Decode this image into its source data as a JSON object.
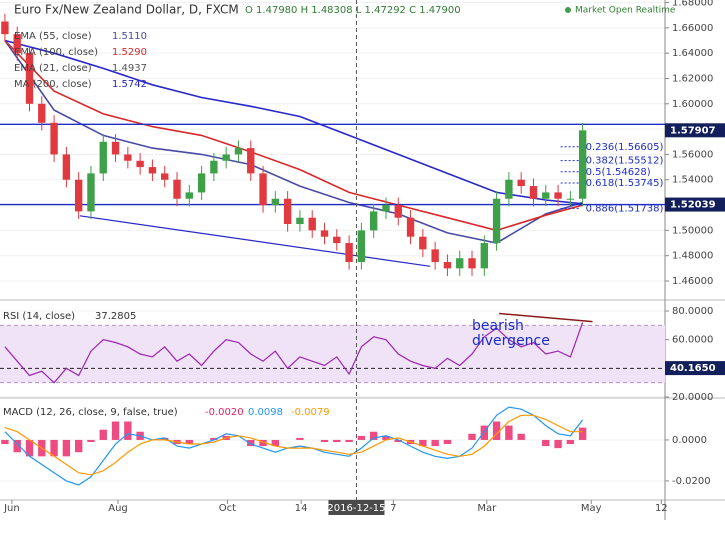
{
  "header": {
    "title": "Euro Fx/New Zealand Dollar, D, FXCM",
    "ohlc": "O 1.47980 H 1.48308 L 1.47292 C 1.47900",
    "status": "Market Open Realtime"
  },
  "crosshair": {
    "x": 28.6,
    "label": "2016-12-15"
  },
  "chart_data": [
    {
      "type": "candlestick",
      "x": [
        0,
        1,
        2,
        3,
        4,
        5,
        6,
        7,
        8,
        9,
        10,
        11,
        12,
        13,
        14,
        15,
        16,
        17,
        18,
        19,
        20,
        21,
        22,
        23,
        24,
        25,
        26,
        27,
        28,
        29,
        30,
        31,
        32,
        33,
        34,
        35,
        36,
        37,
        38,
        39,
        40,
        41,
        42,
        43,
        44,
        45,
        46,
        47
      ],
      "open": [
        1.665,
        1.655,
        1.64,
        1.6,
        1.585,
        1.56,
        1.54,
        1.515,
        1.545,
        1.57,
        1.56,
        1.555,
        1.55,
        1.545,
        1.54,
        1.525,
        1.53,
        1.545,
        1.555,
        1.56,
        1.565,
        1.545,
        1.52,
        1.525,
        1.505,
        1.51,
        1.5,
        1.495,
        1.49,
        1.475,
        1.5,
        1.515,
        1.52,
        1.51,
        1.495,
        1.485,
        1.475,
        1.47,
        1.478,
        1.47,
        1.49,
        1.525,
        1.54,
        1.535,
        1.525,
        1.53,
        1.525,
        1.525
      ],
      "high": [
        1.671,
        1.661,
        1.646,
        1.606,
        1.591,
        1.566,
        1.546,
        1.551,
        1.576,
        1.576,
        1.566,
        1.561,
        1.556,
        1.551,
        1.546,
        1.536,
        1.551,
        1.561,
        1.566,
        1.571,
        1.571,
        1.551,
        1.531,
        1.531,
        1.516,
        1.516,
        1.506,
        1.501,
        1.496,
        1.506,
        1.521,
        1.526,
        1.526,
        1.516,
        1.501,
        1.491,
        1.481,
        1.484,
        1.484,
        1.496,
        1.531,
        1.546,
        1.546,
        1.541,
        1.536,
        1.536,
        1.531,
        1.585
      ],
      "low": [
        1.649,
        1.634,
        1.594,
        1.579,
        1.554,
        1.534,
        1.509,
        1.509,
        1.539,
        1.554,
        1.549,
        1.544,
        1.539,
        1.534,
        1.519,
        1.519,
        1.524,
        1.539,
        1.549,
        1.554,
        1.539,
        1.514,
        1.514,
        1.499,
        1.499,
        1.494,
        1.489,
        1.484,
        1.469,
        1.469,
        1.494,
        1.509,
        1.504,
        1.489,
        1.479,
        1.469,
        1.464,
        1.464,
        1.464,
        1.464,
        1.484,
        1.519,
        1.529,
        1.519,
        1.519,
        1.519,
        1.519,
        1.519
      ],
      "close": [
        1.655,
        1.64,
        1.6,
        1.585,
        1.56,
        1.54,
        1.515,
        1.545,
        1.57,
        1.56,
        1.555,
        1.55,
        1.545,
        1.54,
        1.525,
        1.53,
        1.545,
        1.555,
        1.56,
        1.565,
        1.545,
        1.52,
        1.525,
        1.505,
        1.51,
        1.5,
        1.495,
        1.49,
        1.475,
        1.5,
        1.515,
        1.52,
        1.51,
        1.495,
        1.485,
        1.475,
        1.47,
        1.478,
        1.47,
        1.49,
        1.525,
        1.54,
        1.535,
        1.525,
        1.53,
        1.525,
        1.525,
        1.579
      ],
      "up_color": "#3ea14a",
      "down_color": "#e0393f",
      "series": [
        {
          "name": "EMA (55, close)",
          "legend_value": "1.5110",
          "color": "#4a4aa6",
          "x": [
            0,
            4,
            8,
            12,
            16,
            20,
            24,
            28,
            32,
            36,
            40,
            44,
            47
          ],
          "values": [
            1.65,
            1.595,
            1.575,
            1.565,
            1.56,
            1.552,
            1.535,
            1.522,
            1.513,
            1.498,
            1.49,
            1.513,
            1.522
          ]
        },
        {
          "name": "EMA (100, close)",
          "legend_value": "1.5290",
          "color": "#d8282a",
          "x": [
            0,
            4,
            8,
            12,
            16,
            20,
            24,
            28,
            32,
            36,
            40,
            44,
            47
          ],
          "values": [
            1.65,
            1.61,
            1.592,
            1.582,
            1.575,
            1.562,
            1.548,
            1.53,
            1.52,
            1.51,
            1.5,
            1.512,
            1.52
          ]
        },
        {
          "name": "EMA (21, close)",
          "legend_value": "1.4937",
          "color": "#555555",
          "x": [],
          "values": []
        },
        {
          "name": "MA (200, close)",
          "legend_value": "1.5742",
          "color": "#2828c8",
          "x": [
            0,
            4,
            8,
            12,
            16,
            20,
            24,
            28,
            32,
            36,
            40,
            44,
            47
          ],
          "values": [
            1.65,
            1.64,
            1.628,
            1.615,
            1.605,
            1.598,
            1.59,
            1.575,
            1.56,
            1.545,
            1.53,
            1.524,
            1.521
          ]
        }
      ],
      "hlines": [
        {
          "value": 1.5838
        },
        {
          "value": 1.52039,
          "label": "1.52039"
        }
      ],
      "last_price": {
        "value": 1.57907,
        "label": "1.57907"
      },
      "trendline": {
        "x": [
          6.1,
          34.6
        ],
        "y": [
          1.5115,
          1.4716
        ]
      },
      "fib": [
        {
          "value": 1.56605,
          "label": "0.236(1.56605)"
        },
        {
          "value": 1.55512,
          "label": "0.382(1.55512)"
        },
        {
          "value": 1.54628,
          "label": "0.5(1.54628)"
        },
        {
          "value": 1.53745,
          "label": "0.618(1.53745)"
        },
        {
          "value": 1.51738,
          "label": "0.886(1.51738)"
        }
      ],
      "ylim": [
        1.445,
        1.682
      ],
      "yticks": [
        {
          "value": 1.68,
          "label": "1.68000"
        },
        {
          "value": 1.66,
          "label": "1.66000"
        },
        {
          "value": 1.64,
          "label": "1.64000"
        },
        {
          "value": 1.62,
          "label": "1.62000"
        },
        {
          "value": 1.6,
          "label": "1.60000"
        },
        {
          "value": 1.58,
          "label": "1.58000"
        },
        {
          "value": 1.56,
          "label": "1.56000"
        },
        {
          "value": 1.54,
          "label": "1.54000"
        },
        {
          "value": 1.52,
          "label": "1.52000"
        },
        {
          "value": 1.5,
          "label": "1.50000"
        },
        {
          "value": 1.48,
          "label": "1.48000"
        },
        {
          "value": 1.46,
          "label": "1.46000"
        }
      ]
    },
    {
      "type": "line",
      "title": "RSI (14, close)",
      "title_value": "37.2805",
      "x": [
        0,
        1,
        2,
        3,
        4,
        5,
        6,
        7,
        8,
        9,
        10,
        11,
        12,
        13,
        14,
        15,
        16,
        17,
        18,
        19,
        20,
        21,
        22,
        23,
        24,
        25,
        26,
        27,
        28,
        29,
        30,
        31,
        32,
        33,
        34,
        35,
        36,
        37,
        38,
        39,
        40,
        41,
        42,
        43,
        44,
        45,
        46,
        47
      ],
      "series": [
        {
          "name": "RSI",
          "color": "#9c27b0",
          "values": [
            55,
            45,
            35,
            38,
            30,
            40,
            35,
            52,
            60,
            58,
            55,
            50,
            48,
            55,
            45,
            50,
            42,
            52,
            60,
            58,
            50,
            45,
            52,
            40,
            48,
            45,
            42,
            48,
            36,
            55,
            62,
            60,
            50,
            45,
            42,
            40,
            47,
            42,
            50,
            62,
            68,
            60,
            55,
            58,
            50,
            52,
            48,
            72
          ]
        }
      ],
      "band": [
        30,
        70
      ],
      "level": 40,
      "value_tag": {
        "value": 40.165,
        "label": "40.1650"
      },
      "divergence_line": {
        "x": [
          40.2,
          47.8
        ],
        "y": [
          78.3,
          72.6
        ]
      },
      "annotation": [
        "bearish",
        "divergence"
      ],
      "ylim": [
        19.3,
        86.3
      ],
      "yticks": [
        {
          "value": 80,
          "label": "80.0000"
        },
        {
          "value": 60,
          "label": "60.0000"
        },
        {
          "value": 20,
          "label": "20.0000"
        }
      ]
    },
    {
      "type": "macd",
      "title": "MACD (12, 26, close, 9, false, true)",
      "title_values": [
        {
          "label": "-0.0020",
          "color": "#e91e63"
        },
        {
          "label": "0.0098",
          "color": "#2196f3"
        },
        {
          "label": "-0.0079",
          "color": "#ff9800"
        }
      ],
      "x": [
        0,
        1,
        2,
        3,
        4,
        5,
        6,
        7,
        8,
        9,
        10,
        11,
        12,
        13,
        14,
        15,
        16,
        17,
        18,
        19,
        20,
        21,
        22,
        23,
        24,
        25,
        26,
        27,
        28,
        29,
        30,
        31,
        32,
        33,
        34,
        35,
        36,
        37,
        38,
        39,
        40,
        41,
        42,
        43,
        44,
        45,
        46,
        47
      ],
      "histogram": {
        "color": "#e91e63",
        "values": [
          -0.002,
          -0.006,
          -0.008,
          -0.008,
          -0.008,
          -0.008,
          -0.006,
          -0.001,
          0.005,
          0.009,
          0.009,
          0.004,
          0,
          0.001,
          -0.002,
          -0.002,
          0,
          0.001,
          0.002,
          0,
          -0.003,
          -0.003,
          -0.003,
          0,
          0.001,
          0,
          -0.001,
          -0.001,
          -0.001,
          0.002,
          0.004,
          0.002,
          -0.001,
          -0.002,
          -0.003,
          -0.003,
          -0.002,
          0,
          0.003,
          0.007,
          0.009,
          0.007,
          0.003,
          0,
          -0.003,
          -0.004,
          -0.002,
          0.006
        ]
      },
      "series": [
        {
          "name": "MACD",
          "color": "#2196f3",
          "values": [
            0.004,
            -0.002,
            -0.008,
            -0.012,
            -0.016,
            -0.02,
            -0.022,
            -0.018,
            -0.01,
            -0.002,
            0.003,
            0.002,
            0,
            0.001,
            -0.003,
            -0.004,
            -0.002,
            0,
            0.003,
            0.002,
            -0.002,
            -0.004,
            -0.006,
            -0.004,
            -0.003,
            -0.004,
            -0.006,
            -0.007,
            -0.008,
            -0.004,
            0.001,
            0.002,
            0,
            -0.003,
            -0.006,
            -0.008,
            -0.009,
            -0.008,
            -0.004,
            0.004,
            0.012,
            0.016,
            0.015,
            0.012,
            0.007,
            0.003,
            0.002,
            0.0098
          ]
        },
        {
          "name": "Signal",
          "color": "#ff9800",
          "values": [
            0.006,
            0.004,
            0,
            -0.004,
            -0.008,
            -0.012,
            -0.016,
            -0.017,
            -0.015,
            -0.011,
            -0.006,
            -0.002,
            0,
            0,
            -0.001,
            -0.002,
            -0.002,
            -0.001,
            0.001,
            0.002,
            0.001,
            -0.001,
            -0.003,
            -0.004,
            -0.004,
            -0.004,
            -0.005,
            -0.006,
            -0.007,
            -0.006,
            -0.003,
            0,
            0.001,
            -0.001,
            -0.003,
            -0.005,
            -0.007,
            -0.008,
            -0.007,
            -0.003,
            0.003,
            0.009,
            0.012,
            0.012,
            0.01,
            0.007,
            0.004,
            0.004
          ]
        }
      ],
      "ylim": [
        -0.0293,
        0.019
      ],
      "yticks": [
        {
          "value": 0,
          "label": "0.0000"
        },
        {
          "value": -0.02,
          "label": "-0.0200"
        }
      ],
      "xlim": [
        -0.4,
        53.7
      ],
      "xticks": [
        {
          "value": 0.57,
          "label": "Jun"
        },
        {
          "value": 9.2,
          "label": "Aug"
        },
        {
          "value": 18.1,
          "label": "Oct"
        },
        {
          "value": 24.1,
          "label": "14"
        },
        {
          "value": 31.6,
          "label": "7"
        },
        {
          "value": 39.2,
          "label": "Mar"
        },
        {
          "value": 47.7,
          "label": "May"
        },
        {
          "value": 53.4,
          "label": "12"
        }
      ]
    }
  ]
}
